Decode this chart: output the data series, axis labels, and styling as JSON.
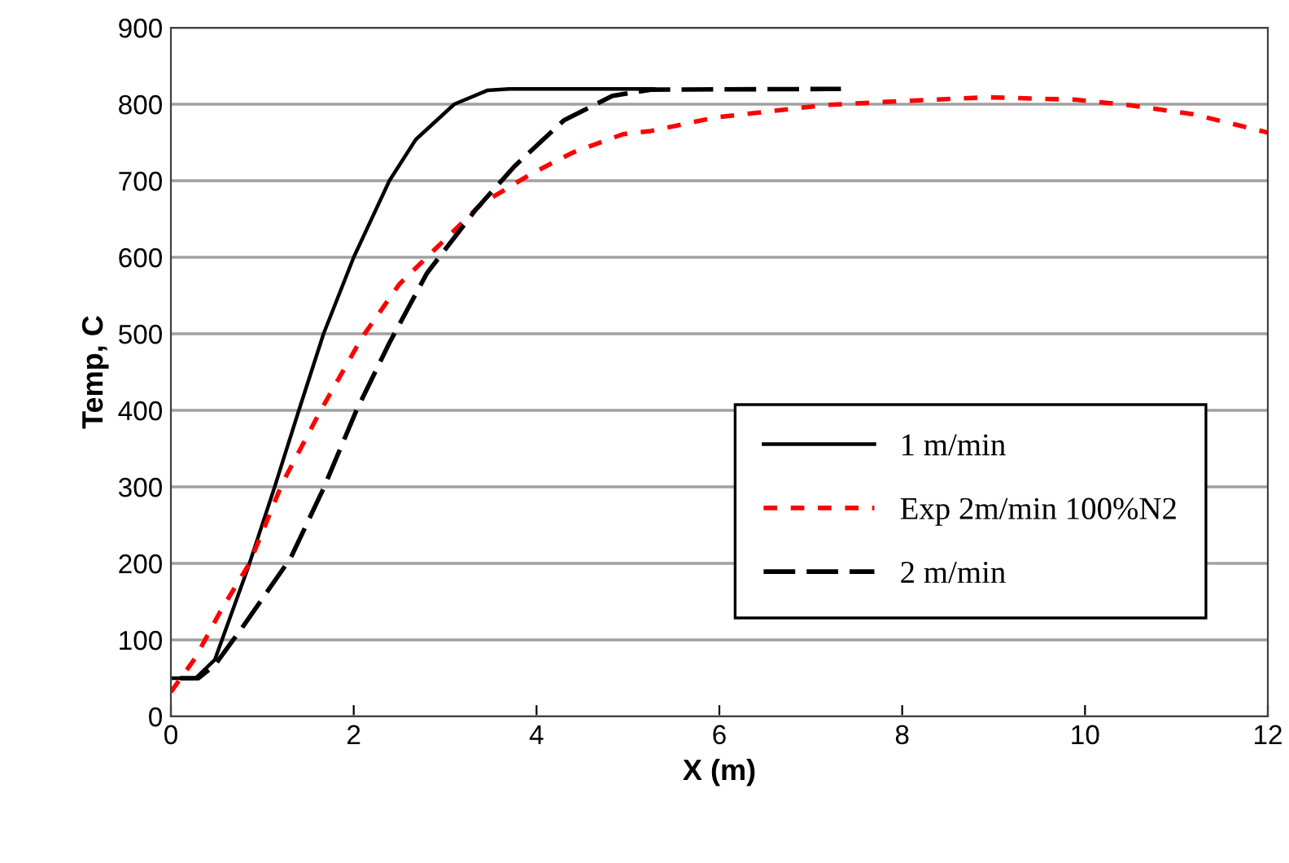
{
  "chart_data": {
    "type": "line",
    "xlabel": "X (m)",
    "ylabel": "Temp, C",
    "xlim": [
      0,
      12
    ],
    "ylim": [
      0,
      900
    ],
    "xticks": [
      0,
      2,
      4,
      6,
      8,
      10,
      12
    ],
    "yticks": [
      0,
      100,
      200,
      300,
      400,
      500,
      600,
      700,
      800,
      900
    ],
    "grid": "y",
    "legend": "bottom right",
    "marker": "none",
    "series": [
      {
        "name": "1 m/min",
        "color": "#000000",
        "line_style": "solid",
        "x": [
          0,
          0.27,
          0.48,
          0.84,
          1.13,
          1.4,
          1.67,
          2.0,
          2.39,
          2.68,
          3.1,
          3.46,
          3.7,
          5.28
        ],
        "values": [
          50,
          50,
          74,
          193,
          298,
          400,
          500,
          600,
          700,
          754,
          800,
          818,
          820,
          820
        ]
      },
      {
        "name": "Exp 2m/min 100%N2",
        "color": "#ff0000",
        "line_style": "dotted",
        "x": [
          0,
          0.27,
          0.54,
          0.86,
          1.22,
          1.64,
          2.09,
          2.5,
          3.1,
          3.4,
          3.94,
          4.4,
          4.95,
          5.25,
          5.97,
          6.2,
          7.16,
          7.98,
          8.94,
          9.88,
          10.47,
          11.18,
          12.0
        ],
        "values": [
          32,
          77,
          137,
          200,
          305,
          400,
          495,
          565,
          635,
          670,
          709,
          737,
          761,
          765,
          783,
          786,
          799,
          804,
          809,
          806,
          799,
          787,
          763
        ]
      },
      {
        "name": "2 m/min",
        "color": "#000000",
        "line_style": "dashed",
        "x": [
          0.1,
          0.3,
          0.48,
          0.78,
          1.31,
          1.67,
          2.03,
          2.39,
          2.8,
          3.34,
          3.76,
          4.3,
          4.83,
          5.25,
          7.33
        ],
        "values": [
          50,
          50,
          67,
          116,
          207,
          298,
          400,
          488,
          579,
          663,
          719,
          779,
          811,
          819,
          820
        ]
      }
    ]
  }
}
